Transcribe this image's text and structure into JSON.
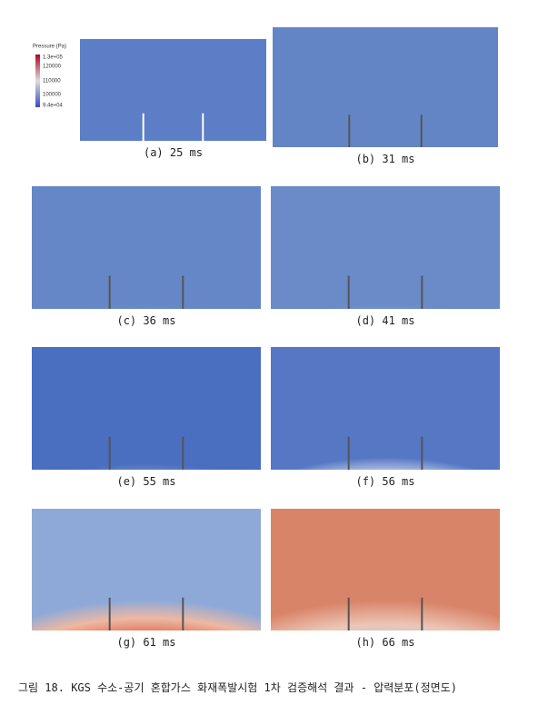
{
  "legend": {
    "title": "Pressure (Pa)",
    "ticks": [
      "1.3e+05",
      "120000",
      "110000",
      "100000",
      "9.4e+04"
    ]
  },
  "panels": [
    {
      "caption": "(a) 25 ms"
    },
    {
      "caption": "(b) 31 ms"
    },
    {
      "caption": "(c) 36 ms"
    },
    {
      "caption": "(d) 41 ms"
    },
    {
      "caption": "(e) 55 ms"
    },
    {
      "caption": "(f) 56 ms"
    },
    {
      "caption": "(g) 61 ms"
    },
    {
      "caption": "(h) 66 ms"
    }
  ],
  "figure_caption": "그림 18. KGS 수소-공기 혼합가스 화재폭발시험 1차 검증해석 결과 - 압력분포(정면도)"
}
